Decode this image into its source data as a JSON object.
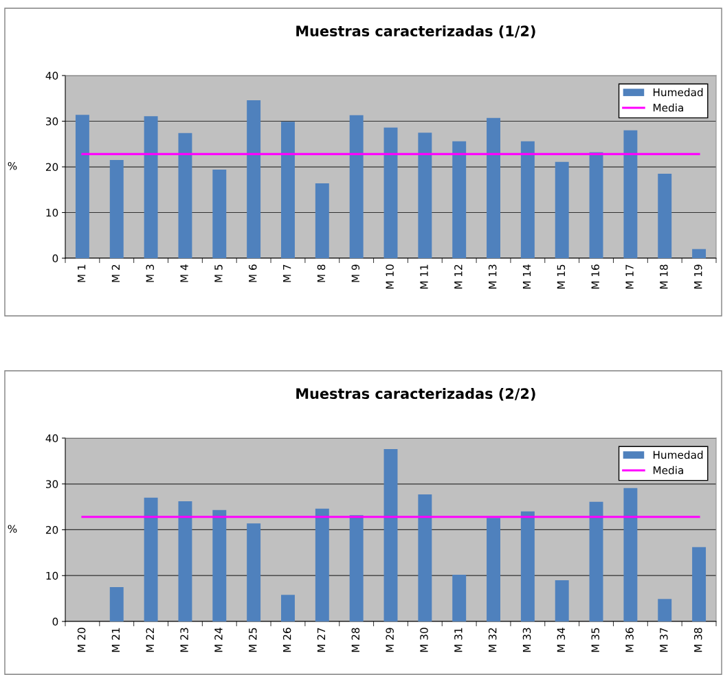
{
  "chart_data": [
    {
      "type": "bar",
      "title": "Muestras caracterizadas (1/2)",
      "ylabel": "%",
      "categories": [
        "M 1",
        "M 2",
        "M 3",
        "M 4",
        "M 5",
        "M 6",
        "M 7",
        "M 8",
        "M 9",
        "M 10",
        "M 11",
        "M 12",
        "M 13",
        "M 14",
        "M 15",
        "M 16",
        "M 17",
        "M 18",
        "M 19"
      ],
      "series": [
        {
          "name": "Humedad",
          "color": "#4f81bd",
          "values": [
            31.4,
            21.5,
            31.1,
            27.4,
            19.4,
            34.6,
            29.9,
            16.4,
            31.3,
            28.6,
            27.5,
            25.6,
            30.7,
            25.6,
            21.1,
            23.2,
            28.0,
            18.5,
            2.0
          ]
        },
        {
          "name": "Media",
          "type": "line",
          "color": "#ff00ff",
          "values": [
            22.8,
            22.8,
            22.8,
            22.8,
            22.8,
            22.8,
            22.8,
            22.8,
            22.8,
            22.8,
            22.8,
            22.8,
            22.8,
            22.8,
            22.8,
            22.8,
            22.8,
            22.8,
            22.8
          ]
        }
      ],
      "ylim": [
        0,
        40
      ],
      "yticks": [
        0,
        10,
        20,
        30,
        40
      ],
      "grid": "y",
      "legend": "top right",
      "marker": "none",
      "line_style": "solid"
    },
    {
      "type": "bar",
      "title": "Muestras caracterizadas (2/2)",
      "ylabel": "%",
      "categories": [
        "M 20",
        "M 21",
        "M 22",
        "M 23",
        "M 24",
        "M 25",
        "M 26",
        "M 27",
        "M 28",
        "M 29",
        "M 30",
        "M 31",
        "M 32",
        "M 33",
        "M 34",
        "M 35",
        "M 36",
        "M 37",
        "M 38"
      ],
      "series": [
        {
          "name": "Humedad",
          "color": "#4f81bd",
          "values": [
            null,
            7.5,
            27.0,
            26.2,
            24.3,
            21.4,
            5.8,
            24.6,
            23.2,
            37.6,
            27.7,
            10.2,
            22.6,
            24.0,
            9.0,
            26.1,
            29.1,
            4.9,
            16.2
          ]
        },
        {
          "name": "Media",
          "type": "line",
          "color": "#ff00ff",
          "values": [
            22.8,
            22.8,
            22.8,
            22.8,
            22.8,
            22.8,
            22.8,
            22.8,
            22.8,
            22.8,
            22.8,
            22.8,
            22.8,
            22.8,
            22.8,
            22.8,
            22.8,
            22.8,
            22.8
          ]
        }
      ],
      "ylim": [
        0,
        40
      ],
      "yticks": [
        0,
        10,
        20,
        30,
        40
      ],
      "grid": "y",
      "legend": "top right",
      "marker": "none",
      "line_style": "solid"
    }
  ]
}
